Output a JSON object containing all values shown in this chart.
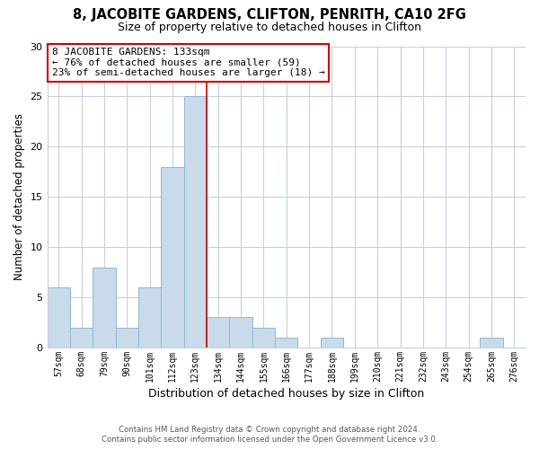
{
  "title": "8, JACOBITE GARDENS, CLIFTON, PENRITH, CA10 2FG",
  "subtitle": "Size of property relative to detached houses in Clifton",
  "xlabel": "Distribution of detached houses by size in Clifton",
  "ylabel": "Number of detached properties",
  "bar_labels": [
    "57sqm",
    "68sqm",
    "79sqm",
    "90sqm",
    "101sqm",
    "112sqm",
    "123sqm",
    "134sqm",
    "144sqm",
    "155sqm",
    "166sqm",
    "177sqm",
    "188sqm",
    "199sqm",
    "210sqm",
    "221sqm",
    "232sqm",
    "243sqm",
    "254sqm",
    "265sqm",
    "276sqm"
  ],
  "bar_values": [
    6,
    2,
    8,
    2,
    6,
    18,
    25,
    3,
    3,
    2,
    1,
    0,
    1,
    0,
    0,
    0,
    0,
    0,
    0,
    1,
    0
  ],
  "bar_color": "#c9daea",
  "bar_edge_color": "#8fb8d4",
  "vline_x_index": 6,
  "vline_color": "#cc0000",
  "annotation_line1": "8 JACOBITE GARDENS: 133sqm",
  "annotation_line2": "← 76% of detached houses are smaller (59)",
  "annotation_line3": "23% of semi-detached houses are larger (18) →",
  "annotation_box_edge": "#cc0000",
  "ylim": [
    0,
    30
  ],
  "yticks": [
    0,
    5,
    10,
    15,
    20,
    25,
    30
  ],
  "footer_line1": "Contains HM Land Registry data © Crown copyright and database right 2024.",
  "footer_line2": "Contains public sector information licensed under the Open Government Licence v3.0.",
  "bg_color": "#ffffff",
  "grid_color": "#c8d0d8"
}
